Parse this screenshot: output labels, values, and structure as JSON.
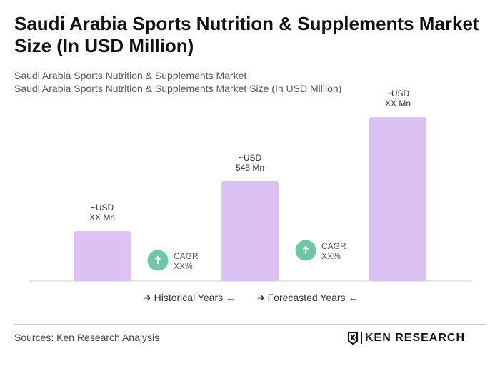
{
  "title": "Saudi Arabia Sports Nutrition & Supplements Market Size (In USD Million)",
  "subtitle1": "Saudi Arabia Sports Nutrition & Supplements Market",
  "subtitle2": "Saudi Arabia Sports Nutrition & Supplements Market Size (In USD Million)",
  "chart_data": {
    "type": "bar",
    "categories": [
      "",
      "",
      ""
    ],
    "values": [
      272,
      545,
      895
    ],
    "data_labels": [
      [
        "~USD",
        "XX Mn"
      ],
      [
        "~USD",
        "545 Mn"
      ],
      [
        "~USD",
        "XX Mn"
      ]
    ],
    "bar_color": "#dcc1f5",
    "cagr": [
      {
        "label": "CAGR",
        "value": "XX%"
      },
      {
        "label": "CAGR",
        "value": "XX%"
      }
    ],
    "cagr_color": "#6cc8a2",
    "grid": false
  },
  "legend": {
    "historical": "Historical Years",
    "forecasted": "Forecasted Years"
  },
  "source": "Sources: Ken Research Analysis",
  "logo_text": "KEN RESEARCH"
}
